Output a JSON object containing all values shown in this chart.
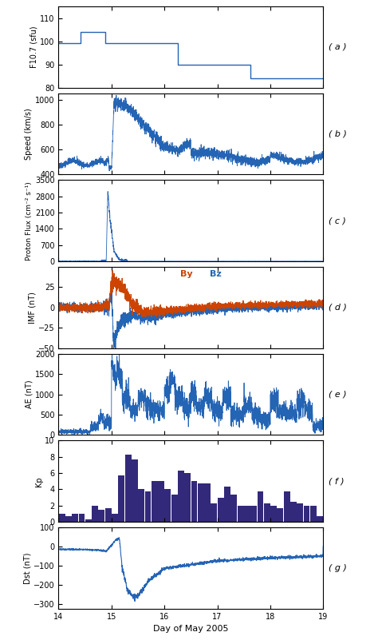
{
  "xlim": [
    14,
    19
  ],
  "xticks": [
    14,
    15,
    16,
    17,
    18,
    19
  ],
  "xlabel": "Day of May 2005",
  "line_color": "#2464B4",
  "bar_color": "#33297A",
  "panel_labels": [
    "( a )",
    "( b )",
    "( c )",
    "( d )",
    "( e )",
    "( f )",
    "( g )"
  ],
  "f107": {
    "ylabel": "F10.7 (sfu)",
    "ylim": [
      80,
      115
    ],
    "yticks": [
      80,
      90,
      100,
      110
    ],
    "x": [
      14.0,
      14.417,
      14.417,
      14.875,
      14.875,
      15.25,
      15.25,
      16.25,
      16.25,
      16.625,
      16.625,
      17.625,
      17.625,
      18.083,
      18.083,
      19.0
    ],
    "y": [
      99,
      99,
      104,
      104,
      99,
      99,
      99,
      99,
      90,
      90,
      90,
      90,
      84,
      84,
      84,
      84
    ]
  },
  "speed": {
    "ylabel": "Speed (km/s)",
    "ylim": [
      400,
      1050
    ],
    "yticks": [
      400,
      600,
      800,
      1000
    ]
  },
  "proton_flux": {
    "ylabel": "Proton Flux (cm⁻² s⁻¹)",
    "ylim": [
      0,
      3500
    ],
    "yticks": [
      0,
      700,
      1400,
      2100,
      2800,
      3500
    ]
  },
  "imf": {
    "ylabel": "IMF (nT)",
    "ylim": [
      -50,
      50
    ],
    "yticks": [
      -50,
      -25,
      0,
      25
    ],
    "by_label": "By",
    "bz_label": "Bz",
    "by_color": "#CC4400",
    "bz_color": "#2464B4"
  },
  "ae": {
    "ylabel": "AE (nT)",
    "ylim": [
      0,
      2000
    ],
    "yticks": [
      0,
      500,
      1000,
      1500,
      2000
    ]
  },
  "kp": {
    "ylabel": "Kp",
    "ylim": [
      0,
      10
    ],
    "yticks": [
      0,
      2,
      4,
      6,
      8,
      10
    ],
    "bar_values": [
      1.0,
      0.7,
      1.0,
      1.0,
      0.3,
      2.0,
      1.5,
      1.7,
      1.0,
      5.7,
      8.3,
      7.7,
      4.0,
      3.7,
      5.0,
      5.0,
      4.0,
      3.3,
      6.3,
      6.0,
      5.0,
      4.7,
      4.7,
      2.3,
      3.0,
      4.3,
      3.3,
      2.0,
      2.0,
      2.0,
      3.7,
      2.3,
      2.0,
      1.7,
      3.7,
      2.5,
      2.3,
      2.0,
      2.0,
      0.7
    ]
  },
  "dst": {
    "ylabel": "Dst (nT)",
    "ylim": [
      -325,
      100
    ],
    "yticks": [
      -300,
      -200,
      -100,
      0,
      100
    ]
  }
}
